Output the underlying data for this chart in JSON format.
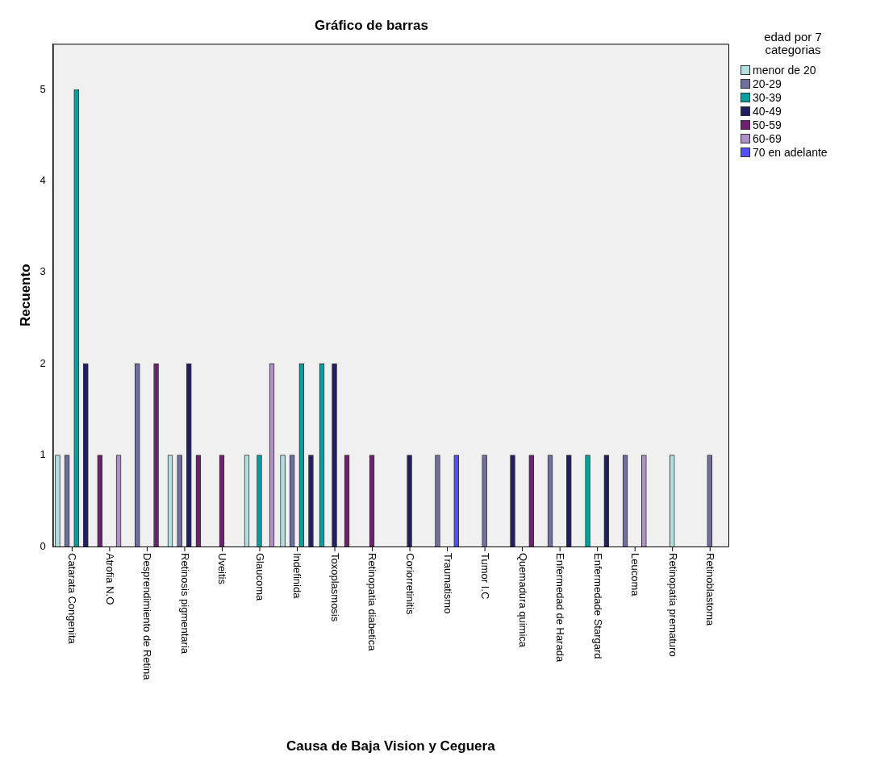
{
  "chart_data": {
    "type": "bar",
    "title": "Gráfico de barras",
    "xlabel": "Causa de Baja Vision y Ceguera",
    "ylabel": "Recuento",
    "legend_title": "edad por 7 categorias",
    "legend": "right",
    "grid": false,
    "categories": [
      "Catarata Congenita",
      "Atrofia N.O",
      "Desprendimiento de Retina",
      "Retinosis pigmentaria",
      "Uveitis",
      "Glaucoma",
      "Indefinida",
      "Toxoplasmosis",
      "Retinopatia diabetica",
      "Coriorretinitis",
      "Traumatismo",
      "Tumor I.C",
      "Quemadura quimica",
      "Enfermedad de Harada",
      "Enfermedade Stargard",
      "Leucoma",
      "Retinopatia prematuro",
      "Retinoblastoma"
    ],
    "ylim": [
      0,
      5.5
    ],
    "yticks": [
      0,
      1,
      2,
      3,
      4,
      5
    ],
    "series": [
      {
        "name": "menor de 20",
        "color": "#b0e0e0",
        "values": [
          1,
          null,
          null,
          1,
          null,
          1,
          1,
          null,
          null,
          null,
          null,
          null,
          null,
          null,
          null,
          null,
          1,
          null
        ]
      },
      {
        "name": "20-29",
        "color": "#7070a0",
        "values": [
          1,
          null,
          2,
          1,
          null,
          null,
          1,
          null,
          null,
          null,
          1,
          1,
          null,
          1,
          null,
          1,
          null,
          1
        ]
      },
      {
        "name": "30-39",
        "color": "#00a0a0",
        "values": [
          5,
          null,
          null,
          null,
          null,
          1,
          2,
          2,
          null,
          null,
          null,
          null,
          null,
          null,
          1,
          null,
          null,
          null
        ]
      },
      {
        "name": "40-49",
        "color": "#202060",
        "values": [
          2,
          null,
          null,
          2,
          null,
          null,
          1,
          2,
          null,
          1,
          null,
          null,
          1,
          1,
          1,
          null,
          null,
          null
        ]
      },
      {
        "name": "50-59",
        "color": "#702070",
        "values": [
          null,
          1,
          2,
          1,
          1,
          null,
          null,
          1,
          1,
          null,
          null,
          null,
          1,
          null,
          null,
          null,
          null,
          null
        ]
      },
      {
        "name": "60-69",
        "color": "#b090c8",
        "values": [
          null,
          1,
          null,
          null,
          null,
          2,
          null,
          null,
          null,
          null,
          null,
          null,
          null,
          null,
          null,
          1,
          null,
          null
        ]
      },
      {
        "name": "70 en adelante",
        "color": "#5050ff",
        "values": [
          null,
          null,
          null,
          null,
          null,
          null,
          null,
          null,
          null,
          null,
          1,
          null,
          null,
          null,
          null,
          null,
          null,
          null
        ]
      }
    ]
  }
}
